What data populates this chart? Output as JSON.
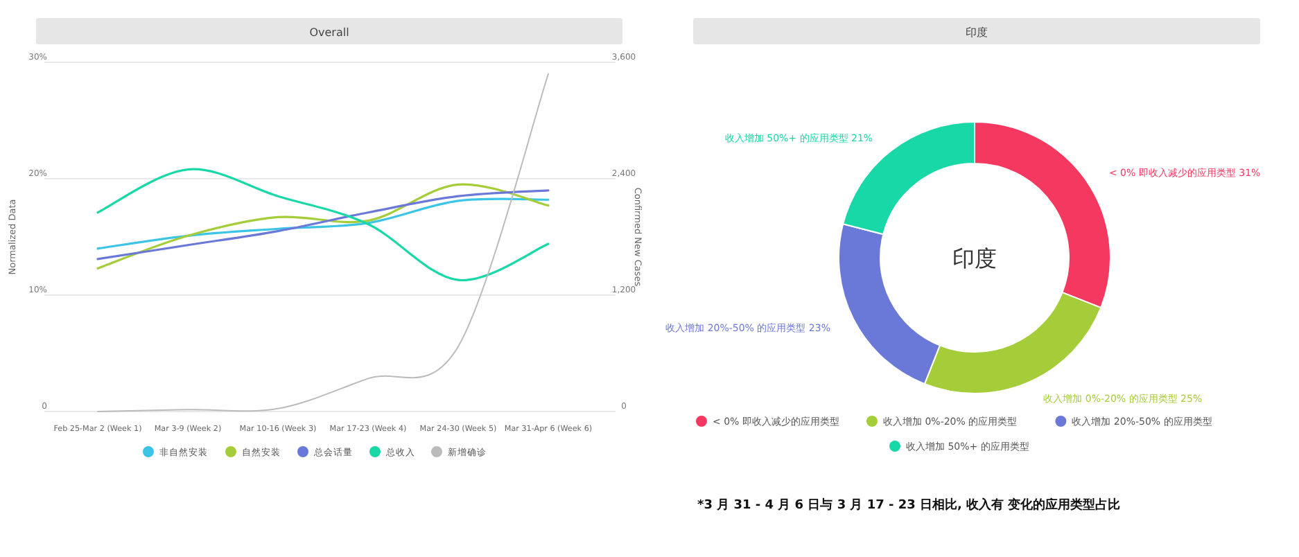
{
  "chart_data": [
    {
      "type": "line",
      "title": "Overall",
      "ylabel": "Normalized Data",
      "y2label": "Confirmed New Cases",
      "categories": [
        "Feb 25-Mar 2 (Week 1)",
        "Mar 3-9 (Week 2)",
        "Mar 10-16 (Week 3)",
        "Mar 17-23 (Week 4)",
        "Mar 24-30 (Week 5)",
        "Mar 31-Apr 6 (Week 6)"
      ],
      "series": [
        {
          "name": "非自然安装",
          "color": "#3cc4e6",
          "values": [
            14.0,
            15.1,
            15.7,
            16.2,
            18.1,
            18.2
          ]
        },
        {
          "name": "自然安装",
          "color": "#a5cd39",
          "values": [
            12.3,
            15.1,
            16.7,
            16.4,
            19.5,
            17.7
          ]
        },
        {
          "name": "总会话量",
          "color": "#6a78d8",
          "values": [
            13.1,
            14.3,
            15.5,
            17.1,
            18.5,
            19.0
          ]
        },
        {
          "name": "总收入",
          "color": "#19d8a8",
          "values": [
            17.1,
            20.8,
            18.5,
            16.1,
            11.3,
            14.4
          ]
        },
        {
          "name": "新增确诊",
          "color": "#bbbbbb",
          "axis": "y2",
          "values": [
            0,
            20,
            30,
            340,
            670,
            3480
          ]
        }
      ],
      "ylim": [
        0,
        30
      ],
      "yticks": [
        0,
        {
          "value": 10,
          "label": "10%"
        },
        {
          "value": 20,
          "label": "20%"
        },
        {
          "value": 30,
          "label": "30%"
        }
      ],
      "y2lim": [
        0,
        3600
      ],
      "y2ticks": [
        0,
        {
          "value": 1200,
          "label": "1,200"
        },
        {
          "value": 2400,
          "label": "2,400"
        },
        {
          "value": 3600,
          "label": "3,600"
        }
      ],
      "grid": "y",
      "legend": "bottom",
      "marker": "none",
      "line_style": "solid"
    },
    {
      "type": "donut",
      "title": "印度",
      "categories": [
        "< 0% 即收入减少的应用类型",
        "收入增加 0%-20% 的应用类型",
        "收入增加 20%-50% 的应用类型",
        "收入增加 50%+ 的应用类型"
      ],
      "values": [
        31,
        25,
        23,
        21
      ],
      "colors": [
        "#f5385f",
        "#a5cd39",
        "#6a78d8",
        "#19d8a8"
      ],
      "value_labels": [
        "31%",
        "25%",
        "23%",
        "21%"
      ],
      "legend": "bottom",
      "annotations": [
        "印度",
        "*3 月 31 - 4 月 6 日与 3 月 17 - 23 日相比, 收入有 变化的应用类型占比"
      ]
    }
  ]
}
